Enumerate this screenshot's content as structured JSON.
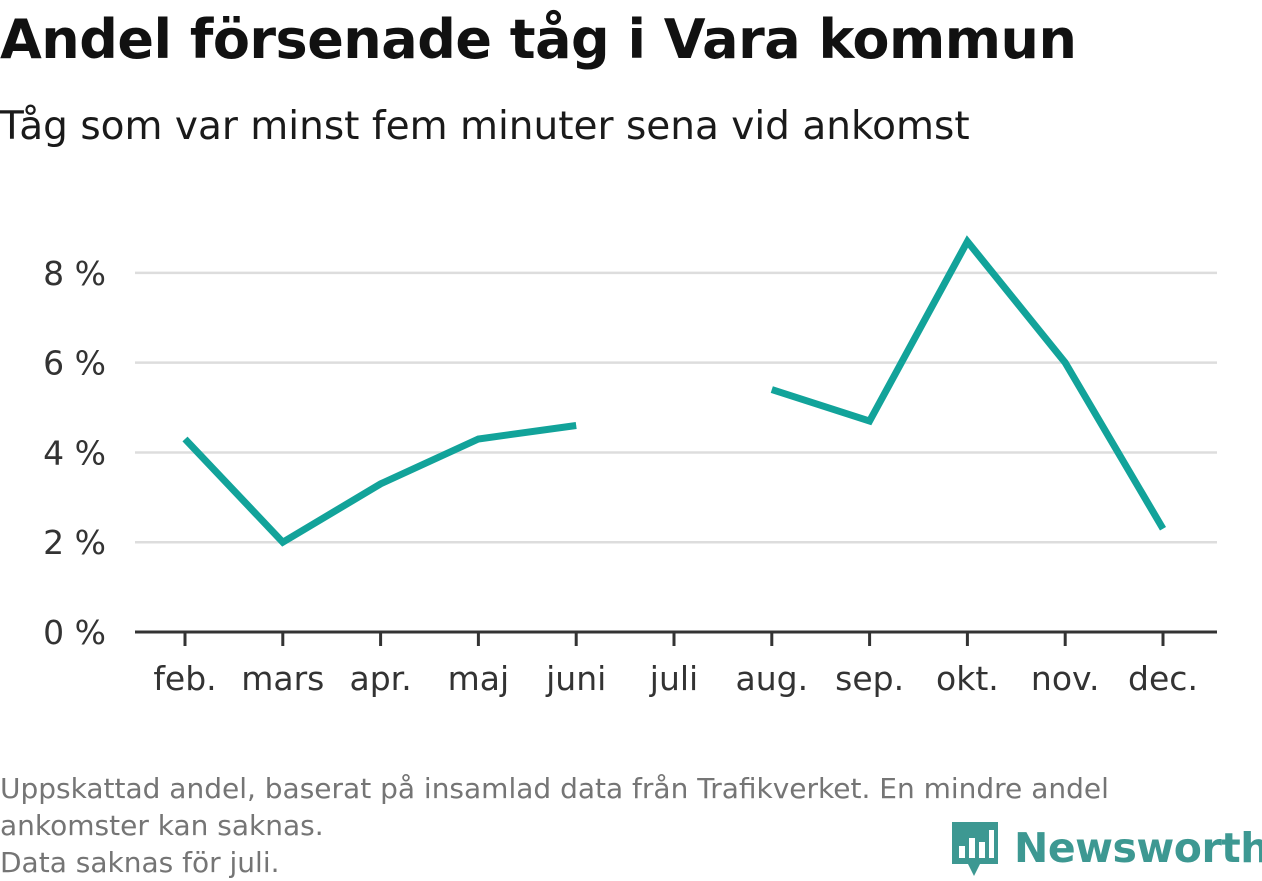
{
  "title": "Andel försenade tåg i Vara kommun",
  "subtitle": "Tåg som var minst fem minuter sena vid ankomst",
  "footnote": {
    "line1": "Uppskattad andel, baserat på insamlad data från Trafikverket. En mindre andel",
    "line2": "ankomster kan saknas.",
    "line3": "Data saknas för juli."
  },
  "brand": {
    "name": "Newsworthy",
    "icon": "bar-chart-speech-bubble-icon",
    "color": "#3d9892"
  },
  "colors": {
    "line": "#12a39a",
    "grid": "#dddddd",
    "axis": "#333333"
  },
  "chart_data": {
    "type": "line",
    "categories": [
      "feb.",
      "mars",
      "apr.",
      "maj",
      "juni",
      "juli",
      "aug.",
      "sep.",
      "okt.",
      "nov.",
      "dec."
    ],
    "values": [
      4.3,
      2.0,
      3.3,
      4.3,
      4.6,
      null,
      5.4,
      4.7,
      8.7,
      6.0,
      2.3
    ],
    "yticks": [
      0,
      2,
      4,
      6,
      8
    ],
    "ytick_labels": [
      "0 %",
      "2 %",
      "4 %",
      "6 %",
      "8 %"
    ],
    "ylim": [
      0,
      9
    ],
    "grid": true,
    "legend": false,
    "xlabel": "",
    "ylabel": ""
  }
}
